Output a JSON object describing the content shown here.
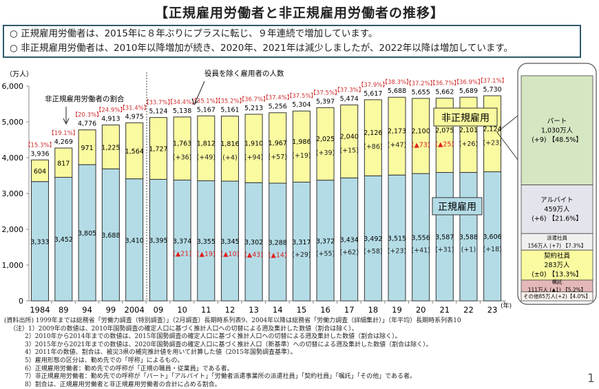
{
  "title": "【正規雇用労働者と非正規雇用労働者の推移】",
  "summary": [
    "○ 正規雇用労働者は、2015年に８年ぶりにプラスに転じ、９年連続で増加しています。",
    "○ 非正規雇用労働者は、2010年以降増加が続き、2020年、2021年は減少しましたが、2022年以降は増加しています。"
  ],
  "chart_data": {
    "type": "bar",
    "stacked": true,
    "ylabel": "（万人）",
    "xunit": "(年)",
    "ylim": [
      0,
      6000
    ],
    "yticks": [
      "0",
      "1,000",
      "2,000",
      "3,000",
      "4,000",
      "5,000",
      "6,000"
    ],
    "categories": [
      "1984",
      "89",
      "94",
      "99",
      "2004",
      "09",
      "10",
      "11",
      "12",
      "13",
      "14",
      "15",
      "16",
      "17",
      "18",
      "19",
      "20",
      "21",
      "22",
      "23"
    ],
    "series": [
      {
        "name": "正規雇用",
        "color": "#b4dce6",
        "values": [
          3333,
          3452,
          3805,
          3688,
          3410,
          3395,
          3374,
          3355,
          3345,
          3302,
          3288,
          3317,
          3372,
          3434,
          3492,
          3515,
          3556,
          3587,
          3588,
          3606
        ],
        "labels": [
          "3,333",
          "3,452",
          "3,805",
          "3,688",
          "3,410",
          "3,395",
          "3,374",
          "3,355",
          "3,345",
          "3,302",
          "3,288",
          "3,317",
          "3,372",
          "3,434",
          "3,492",
          "3,515",
          "3,556",
          "3,587",
          "3,588",
          "3,606"
        ],
        "changes": [
          "",
          "",
          "",
          "",
          "",
          "",
          "(▲21)",
          "(▲19)",
          "(▲10)",
          "(▲43)",
          "(▲14)",
          "(+29)",
          "(+55)",
          "(+62)",
          "(+58)",
          "(+23)",
          "(+41)",
          "(+31)",
          "(+1)",
          "(+18)"
        ]
      },
      {
        "name": "非正規雇用",
        "color": "#fafaa0",
        "values": [
          604,
          817,
          971,
          1225,
          1564,
          1727,
          1763,
          1812,
          1816,
          1910,
          1967,
          1986,
          2025,
          2040,
          2126,
          2173,
          2100,
          2075,
          2101,
          2124
        ],
        "labels": [
          "604",
          "817",
          "971",
          "1,225",
          "1,564",
          "1,727",
          "1,763",
          "1,812",
          "1,816",
          "1,910",
          "1,967",
          "1,986",
          "2,025",
          "2,040",
          "2,126",
          "2,173",
          "2,100",
          "2,075",
          "2,101",
          "2,124"
        ],
        "changes": [
          "",
          "",
          "",
          "",
          "",
          "",
          "(+36)",
          "(+49)",
          "(+4)",
          "(+94)",
          "(+57)",
          "(+19)",
          "(+39)",
          "(+15)",
          "(+86)",
          "(+47)",
          "(▲73)",
          "(▲25)",
          "(+26)",
          "(+23)"
        ]
      }
    ],
    "totals": [
      "3,936",
      "4,269",
      "4,776",
      "4,913",
      "4,975",
      "5,124",
      "5,138",
      "5,167",
      "5,161",
      "5,213",
      "5,256",
      "5,304",
      "5,397",
      "5,474",
      "5,617",
      "5,688",
      "5,655",
      "5,662",
      "5,689",
      "5,730"
    ],
    "total_values": [
      3936,
      4269,
      4776,
      4913,
      4975,
      5124,
      5138,
      5167,
      5161,
      5213,
      5256,
      5304,
      5397,
      5474,
      5617,
      5688,
      5655,
      5662,
      5689,
      5730
    ],
    "nonregular_share": [
      "【15.3%】",
      "【19.1%】",
      "【20.3%】",
      "【24.9%】",
      "【31.4%】",
      "【33.7%】",
      "【34.4%】",
      "【35.1%】",
      "【35.2%】",
      "【36.7%】",
      "【37.4%】",
      "【37.5%】",
      "【37.5%】",
      "【37.3%】",
      "【37.9%】",
      "【38.3%】",
      "【37.2%】",
      "【36.7%】",
      "【36.9%】",
      "【37.1%】"
    ],
    "annotations": {
      "share": "非正規雇用労働者の割合",
      "employees": "役員を除く雇用者の人数",
      "nonregular_box": "非正規雇用",
      "regular_box": "正規雇用"
    },
    "breakdown_2023": [
      {
        "name": "パート",
        "value": 1030,
        "lines": [
          "パート",
          "1,030万人",
          "(+9) 【48.5%】"
        ],
        "color": "#d5e6c2"
      },
      {
        "name": "アルバイト",
        "value": 459,
        "lines": [
          "アルバイト",
          "459万人",
          "(+6) 【21.6%】"
        ],
        "color": "#e4e4ec"
      },
      {
        "name": "派遣社員",
        "value": 156,
        "lines": [
          "派遣社員",
          "156万人 (+7) 【7.3%】"
        ],
        "color": "#f0f0f0"
      },
      {
        "name": "契約社員",
        "value": 283,
        "lines": [
          "契約社員",
          "283万人",
          "(±0) 【13.3%】"
        ],
        "color": "#fafaa0"
      },
      {
        "name": "嘱託",
        "value": 111,
        "lines": [
          "嘱託",
          "111万人 (▲1) 【5.2%】"
        ],
        "color": "#e4b8b8"
      },
      {
        "name": "その他",
        "value": 85,
        "lines": [
          "その他85万人(+2)【4.0%】"
        ],
        "color": "#fbf3ee"
      }
    ],
    "colors": {
      "regular": "#b4dce6",
      "nonregular": "#fafaa0",
      "share": "#d03030",
      "negative": "#e02020"
    }
  },
  "notes": [
    "(資料出所) 1999年までは総務省「労働力調査（特別調査）」（2月調査）長期時系列表9、2004年以降は総務省「労働力調査（詳細集計）」（年平均）長期時系列表10",
    "（注）1）2009年の数値は、2010年国勢調査の確定人口に基づく推計人口への切替による遡及集計した数値（割合は除く）。",
    "2）2010年から2014年までの数値は、2015年国勢調査の確定人口に基づく推計人口への切替による遡及集計した数値（割合は除く）。",
    "3）2015年から2021年までの数値は、2020年国勢調査の確定人口に基づく推計人口（新基準）への切替による遡及集計した数値（割合は除く）。",
    "4）2011年の数値、割合は、被災3県の補完推計値を用いて計算した値（2015年国勢調査基準）。",
    "5）雇用形態の区分は、勤め先での「呼称」によるもの。",
    "6）正規雇用労働者：勤め先での呼称が「正規の職員・従業員」である者。",
    "7）非正規雇用労働者：勤め先での呼称が「パート」「アルバイト」「労働者派遣事業所の派遣社員」「契約社員」「嘱託」「その他」である者。",
    "8）割合は、正規雇用労働者と非正規雇用労働者の合計に占める割合。"
  ],
  "page_number": "1"
}
